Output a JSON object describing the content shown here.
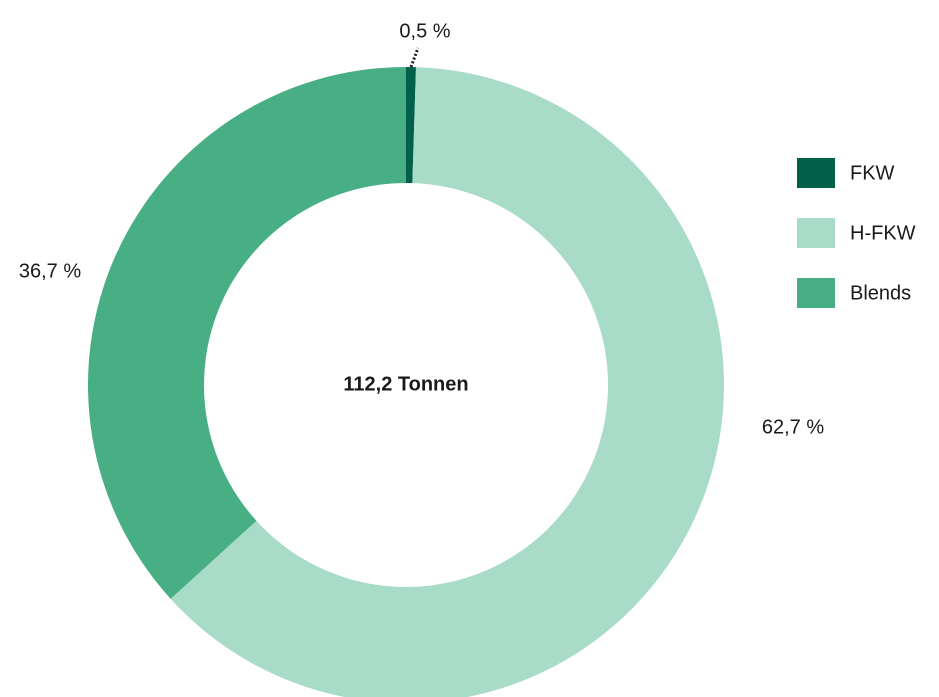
{
  "chart_data": {
    "type": "donut",
    "categories": [
      "FKW",
      "H-FKW",
      "Blends"
    ],
    "values": [
      0.5,
      62.7,
      36.7
    ],
    "value_labels": [
      "0,5 %",
      "62,7 %",
      "36,7 %"
    ],
    "colors": [
      "#00604a",
      "#a8dbc8",
      "#48ae84"
    ],
    "center_label": "112,2 Tonnen",
    "legend": "right"
  }
}
